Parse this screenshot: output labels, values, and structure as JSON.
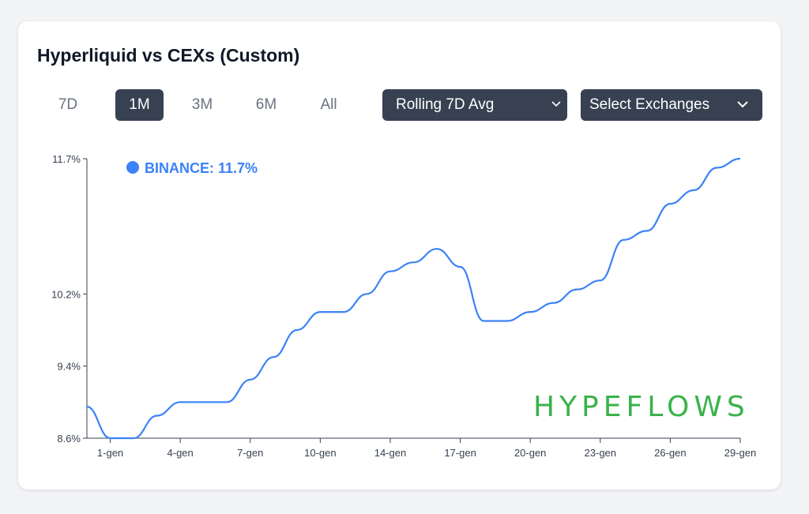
{
  "card": {
    "title": "Hyperliquid vs CEXs (Custom)"
  },
  "ranges": [
    {
      "label": "7D",
      "active": false
    },
    {
      "label": "1M",
      "active": true
    },
    {
      "label": "3M",
      "active": false
    },
    {
      "label": "6M",
      "active": false
    },
    {
      "label": "All",
      "active": false
    }
  ],
  "controls": {
    "avg_select": {
      "value": "Rolling 7D Avg",
      "icon": "chevron-down-icon"
    },
    "exchange_select": {
      "value": "Select Exchanges",
      "icon": "chevron-down-icon"
    }
  },
  "watermark": "HYPEFLOWS",
  "colors": {
    "series": "#3b82f6",
    "button_dark": "#374151",
    "watermark": "#3ab34a"
  },
  "chart_data": {
    "type": "line",
    "y_ticks": [
      "11.7%",
      "10.2%",
      "9.4%",
      "8.6%"
    ],
    "y_tick_values": [
      11.7,
      10.2,
      9.4,
      8.6
    ],
    "ylim": [
      8.6,
      11.7
    ],
    "x_ticks": [
      "1-gen",
      "4-gen",
      "7-gen",
      "10-gen",
      "14-gen",
      "17-gen",
      "20-gen",
      "23-gen",
      "26-gen",
      "29-gen"
    ],
    "legend": {
      "series": "BINANCE",
      "value": "11.7%",
      "label": "BINANCE: 11.7%"
    },
    "series": [
      {
        "name": "BINANCE",
        "x": [
          "31-dic",
          "1-gen",
          "2-gen",
          "3-gen",
          "4-gen",
          "5-gen",
          "6-gen",
          "7-gen",
          "8-gen",
          "9-gen",
          "10-gen",
          "11-gen",
          "12-gen",
          "14-gen",
          "15-gen",
          "16-gen",
          "17-gen",
          "18-gen",
          "19-gen",
          "20-gen",
          "21-gen",
          "22-gen",
          "23-gen",
          "24-gen",
          "25-gen",
          "26-gen",
          "27-gen",
          "28-gen",
          "29-gen"
        ],
        "values": [
          8.95,
          8.6,
          8.6,
          8.85,
          9.0,
          9.0,
          9.0,
          9.25,
          9.5,
          9.8,
          10.0,
          10.0,
          10.2,
          10.45,
          10.55,
          10.7,
          10.5,
          9.9,
          9.9,
          10.0,
          10.1,
          10.25,
          10.35,
          10.8,
          10.9,
          11.2,
          11.35,
          11.6,
          11.7
        ]
      }
    ]
  }
}
